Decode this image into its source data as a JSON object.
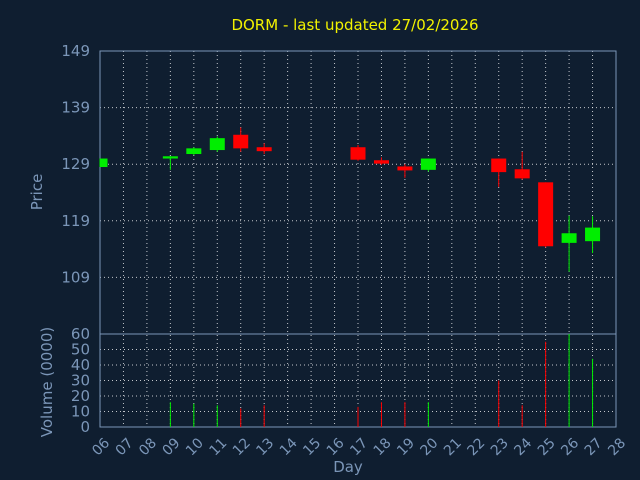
{
  "chart_data": {
    "type": "candlestick",
    "title": "DORM - last updated 27/02/2026",
    "xlabel": "Day",
    "ylabel_price": "Price",
    "ylabel_volume": "Volume (0000)",
    "x_ticks": [
      "06",
      "07",
      "08",
      "09",
      "10",
      "11",
      "12",
      "13",
      "14",
      "15",
      "16",
      "17",
      "18",
      "19",
      "20",
      "21",
      "22",
      "23",
      "24",
      "25",
      "26",
      "27",
      "28"
    ],
    "price_ticks": [
      "149",
      "139",
      "129",
      "119",
      "109"
    ],
    "price_ylim": [
      99,
      149
    ],
    "volume_ticks": [
      "60",
      "50",
      "40",
      "30",
      "20",
      "10",
      "0"
    ],
    "volume_ylim": [
      0,
      60
    ],
    "grid": true,
    "colors": {
      "up": "#00ee00",
      "down": "#ff0000",
      "background": "#0f1e30",
      "title": "#f2f200",
      "axis": "#7b96b8",
      "grid": "#ffffff"
    },
    "candles": [
      {
        "day": "06",
        "open": 128.5,
        "close": 130.0,
        "high": 130.0,
        "low": 128.5,
        "volume": 0
      },
      {
        "day": "09",
        "open": 130.0,
        "close": 130.4,
        "high": 130.4,
        "low": 128.0,
        "volume": 16
      },
      {
        "day": "10",
        "open": 130.8,
        "close": 131.8,
        "high": 132.0,
        "low": 130.6,
        "volume": 15
      },
      {
        "day": "11",
        "open": 131.5,
        "close": 133.6,
        "high": 133.9,
        "low": 131.2,
        "volume": 14
      },
      {
        "day": "12",
        "open": 134.2,
        "close": 131.8,
        "high": 135.5,
        "low": 131.2,
        "volume": 12
      },
      {
        "day": "13",
        "open": 132.0,
        "close": 131.3,
        "high": 132.7,
        "low": 130.8,
        "volume": 14
      },
      {
        "day": "17",
        "open": 132.0,
        "close": 129.8,
        "high": 132.4,
        "low": 129.6,
        "volume": 13
      },
      {
        "day": "18",
        "open": 129.7,
        "close": 129.1,
        "high": 130.2,
        "low": 128.9,
        "volume": 16
      },
      {
        "day": "19",
        "open": 128.6,
        "close": 127.9,
        "high": 129.0,
        "low": 126.6,
        "volume": 16
      },
      {
        "day": "20",
        "open": 128.0,
        "close": 130.0,
        "high": 130.0,
        "low": 127.7,
        "volume": 16
      },
      {
        "day": "23",
        "open": 130.0,
        "close": 127.6,
        "high": 130.0,
        "low": 125.0,
        "volume": 30
      },
      {
        "day": "24",
        "open": 128.1,
        "close": 126.5,
        "high": 131.2,
        "low": 126.3,
        "volume": 14
      },
      {
        "day": "25",
        "open": 125.8,
        "close": 114.5,
        "high": 125.8,
        "low": 114.3,
        "volume": 55
      },
      {
        "day": "26",
        "open": 115.1,
        "close": 116.8,
        "high": 119.9,
        "low": 110.0,
        "volume": 61
      },
      {
        "day": "27",
        "open": 115.4,
        "close": 117.8,
        "high": 119.8,
        "low": 113.3,
        "volume": 44
      }
    ]
  }
}
